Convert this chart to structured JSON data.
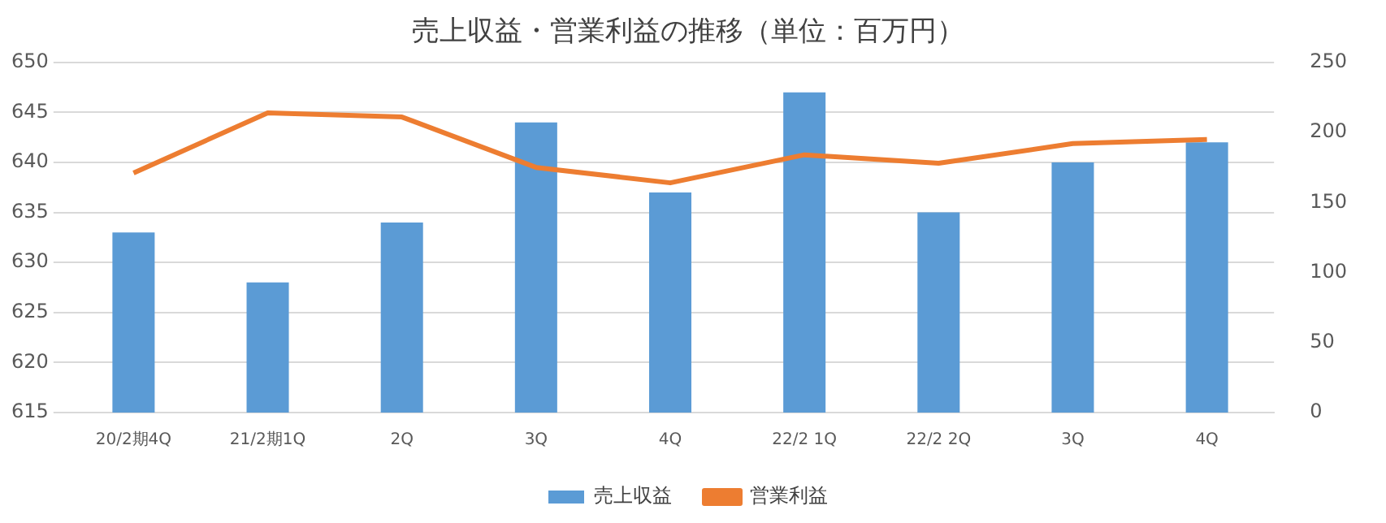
{
  "chart_data": {
    "type": "bar",
    "title": "売上収益・営業利益の推移（単位：百万円）",
    "categories": [
      "20/2期4Q",
      "21/2期1Q",
      "2Q",
      "3Q",
      "4Q",
      "22/2 1Q",
      "22/2 2Q",
      "3Q",
      "4Q"
    ],
    "series": [
      {
        "name": "売上収益",
        "color": "#5b9bd5",
        "values": [
          633,
          628,
          634,
          644,
          637,
          647,
          635,
          640,
          642
        ]
      },
      {
        "name": "営業利益",
        "type": "line",
        "axis": "y2",
        "color": "#ed7d31",
        "values": [
          171,
          214,
          211,
          175,
          164,
          184,
          178,
          192,
          195
        ]
      }
    ],
    "ylim": [
      615,
      650
    ],
    "yticks": [
      615,
      620,
      625,
      630,
      635,
      640,
      645,
      650
    ],
    "y2lim": [
      0,
      250
    ],
    "y2ticks": [
      0,
      50,
      100,
      150,
      200,
      250
    ],
    "grid": "y",
    "legend": "bottom",
    "marker": "none"
  }
}
